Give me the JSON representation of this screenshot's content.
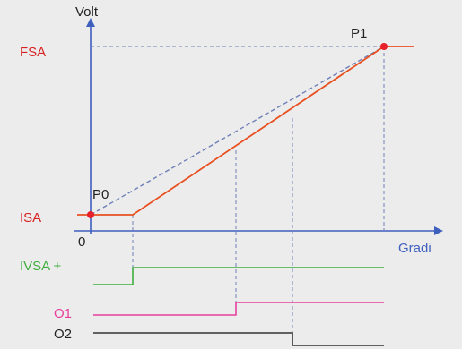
{
  "colors": {
    "background": "#ececec",
    "axis": "#3f5fbf",
    "ramp": "#e85020",
    "dashed": "#6f7fb8",
    "point": "#e8202a",
    "ivsa": "#3fae3f",
    "o1": "#e83f9c",
    "o2": "#333333",
    "text": "#222222",
    "label_red": "#d82020",
    "label_green": "#3fae3f",
    "label_pink": "#e83f9c"
  },
  "axes": {
    "y_title": "Volt",
    "x_title": "Gradi",
    "origin": "0"
  },
  "levels": {
    "fsa": "FSA",
    "isa": "ISA"
  },
  "points": {
    "p0": "P0",
    "p1": "P1"
  },
  "signals": {
    "ivsa": "IVSA +",
    "o1": "O1",
    "o2": "O2"
  }
}
